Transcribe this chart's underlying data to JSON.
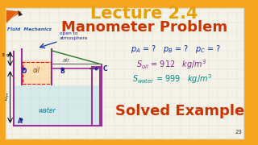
{
  "bg_color": "#F5A520",
  "panel_color": "#F0EDE0",
  "title1": "Lecture 2.4",
  "title2": "Manometer Problem",
  "title1_color": "#E8A000",
  "title2_color": "#CC3300",
  "subtitle": "Solved Example",
  "subtitle_color": "#CC3300",
  "logo_color": "#E05000",
  "brand_text": "Fluid  Mechanics",
  "brand_color": "#2255AA",
  "eq1_color": "#1133AA",
  "eq2_color": "#882288",
  "eq3_color": "#008888",
  "diagram_label_color": "#222299",
  "tank_box_color": "#993399",
  "water_color": "#44CCDD",
  "oil_color": "#DD8800",
  "page_num": "23"
}
